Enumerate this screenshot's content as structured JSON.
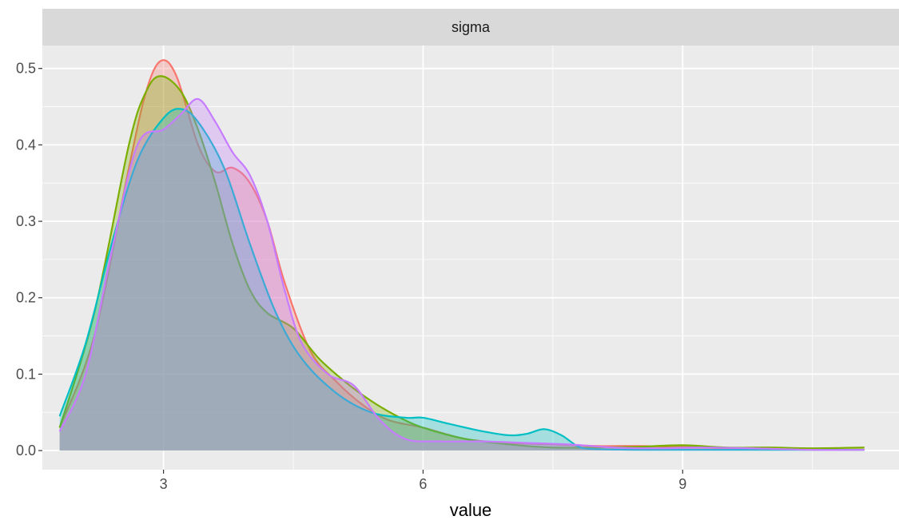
{
  "chart_data": {
    "type": "area",
    "facet_label": "sigma",
    "xlabel": "value",
    "ylabel": "",
    "xlim": [
      1.6,
      11.5
    ],
    "ylim": [
      -0.025,
      0.53
    ],
    "x_ticks": [
      3,
      6,
      9
    ],
    "x_tick_labels": [
      "3",
      "6",
      "9"
    ],
    "y_ticks": [
      0.0,
      0.1,
      0.2,
      0.3,
      0.4,
      0.5
    ],
    "y_tick_labels": [
      "0.0",
      "0.1",
      "0.2",
      "0.3",
      "0.4",
      "0.5"
    ],
    "grid": true,
    "legend": "none",
    "colors": {
      "panel_bg": "#ebebeb",
      "grid_major": "#ffffff",
      "strip_bg": "#d9d9d9"
    },
    "series": [
      {
        "color": "#f8766d",
        "x": [
          1.8,
          2.2,
          2.6,
          2.8,
          2.97,
          3.15,
          3.4,
          3.6,
          3.8,
          4.0,
          4.2,
          4.4,
          4.7,
          5.0,
          5.3,
          5.6,
          6.0,
          6.5,
          7.0,
          7.5,
          8.0,
          8.5,
          9.0,
          9.5,
          10.0,
          10.5,
          11.1
        ],
        "y": [
          0.03,
          0.15,
          0.37,
          0.47,
          0.51,
          0.49,
          0.4,
          0.365,
          0.37,
          0.35,
          0.3,
          0.22,
          0.13,
          0.09,
          0.06,
          0.04,
          0.03,
          0.015,
          0.01,
          0.008,
          0.006,
          0.006,
          0.005,
          0.003,
          0.002,
          0.001,
          0.001
        ]
      },
      {
        "color": "#7cae00",
        "x": [
          1.8,
          2.2,
          2.6,
          2.8,
          2.97,
          3.2,
          3.4,
          3.6,
          3.8,
          4.0,
          4.2,
          4.5,
          4.8,
          5.1,
          5.4,
          5.7,
          6.0,
          6.5,
          7.0,
          7.5,
          8.0,
          8.5,
          9.0,
          9.5,
          10.0,
          10.5,
          11.1
        ],
        "y": [
          0.03,
          0.18,
          0.4,
          0.47,
          0.49,
          0.47,
          0.42,
          0.35,
          0.27,
          0.21,
          0.18,
          0.16,
          0.12,
          0.09,
          0.065,
          0.045,
          0.03,
          0.015,
          0.008,
          0.004,
          0.004,
          0.005,
          0.007,
          0.004,
          0.004,
          0.003,
          0.004
        ]
      },
      {
        "color": "#00bfc4",
        "x": [
          1.8,
          2.1,
          2.4,
          2.7,
          3.0,
          3.2,
          3.4,
          3.7,
          4.0,
          4.3,
          4.6,
          5.0,
          5.4,
          5.8,
          6.0,
          6.3,
          6.7,
          7.0,
          7.2,
          7.4,
          7.6,
          7.8,
          8.0,
          8.5,
          9.0,
          10.0,
          11.1
        ],
        "y": [
          0.045,
          0.14,
          0.27,
          0.38,
          0.435,
          0.447,
          0.43,
          0.37,
          0.27,
          0.18,
          0.12,
          0.075,
          0.05,
          0.043,
          0.043,
          0.035,
          0.025,
          0.02,
          0.022,
          0.028,
          0.02,
          0.005,
          0.002,
          0.001,
          0.001,
          0.001,
          0.001
        ]
      },
      {
        "color": "#c77cff",
        "x": [
          1.8,
          2.1,
          2.4,
          2.7,
          3.0,
          3.2,
          3.4,
          3.6,
          3.8,
          4.0,
          4.2,
          4.4,
          4.6,
          4.9,
          5.2,
          5.5,
          5.8,
          6.2,
          6.7,
          7.2,
          7.7,
          8.2,
          8.7,
          9.2,
          9.8,
          10.5,
          11.1
        ],
        "y": [
          0.025,
          0.1,
          0.26,
          0.4,
          0.42,
          0.44,
          0.46,
          0.43,
          0.39,
          0.36,
          0.3,
          0.21,
          0.14,
          0.1,
          0.085,
          0.04,
          0.015,
          0.012,
          0.012,
          0.01,
          0.008,
          0.004,
          0.003,
          0.004,
          0.003,
          0.001,
          0.001
        ]
      }
    ]
  }
}
